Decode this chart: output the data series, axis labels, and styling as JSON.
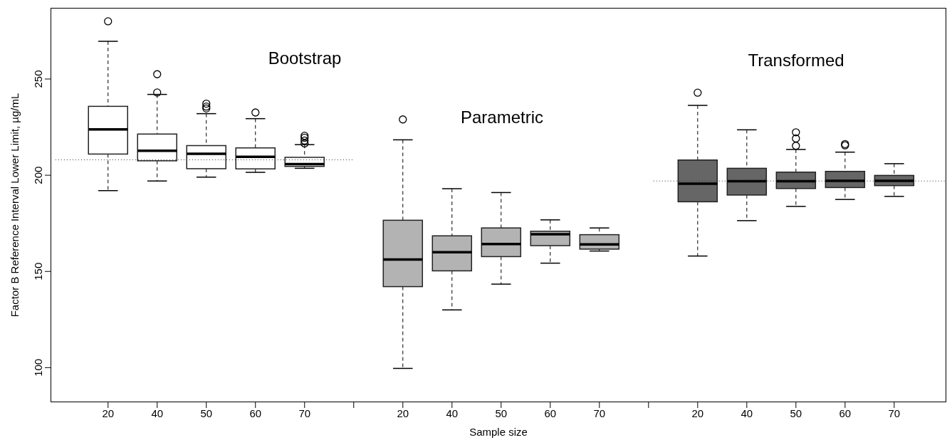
{
  "chart_data": {
    "type": "box",
    "xlabel": "Sample size",
    "ylabel": "Factor B Reference Interval Lower Limit, µg/mL",
    "annotations": [
      "Bootstrap",
      "Parametric",
      "Transformed"
    ],
    "categories": [
      "20",
      "40",
      "50",
      "60",
      "70",
      null,
      "20",
      "40",
      "50",
      "60",
      "70",
      null,
      "20",
      "40",
      "50",
      "60",
      "70"
    ],
    "boxes": [
      {
        "low": 192,
        "q1": 211,
        "median": 223.8,
        "q3": 235.8,
        "high": 269.6,
        "outliers": [
          280
        ]
      },
      {
        "low": 197,
        "q1": 207.5,
        "median": 212.7,
        "q3": 221.4,
        "high": 242,
        "outliers": [
          243,
          252.5
        ]
      },
      {
        "low": 199,
        "q1": 203.4,
        "median": 211.1,
        "q3": 215.4,
        "high": 232,
        "outliers": [
          234.7,
          235.7,
          237.2
        ]
      },
      {
        "low": 201.5,
        "q1": 203.3,
        "median": 209.6,
        "q3": 214.2,
        "high": 229.4,
        "outliers": [
          232.6
        ]
      },
      {
        "low": 203.6,
        "q1": 204.6,
        "median": 205.8,
        "q3": 209.3,
        "high": 215.9,
        "outliers": [
          216.5,
          218,
          219.5,
          220.5
        ]
      },
      null,
      {
        "low": 99.6,
        "q1": 142.1,
        "median": 156.2,
        "q3": 176.6,
        "high": 218.4,
        "outliers": [
          229
        ]
      },
      {
        "low": 130,
        "q1": 150.3,
        "median": 160,
        "q3": 168.5,
        "high": 193
      },
      {
        "low": 143.4,
        "q1": 157.7,
        "median": 164.2,
        "q3": 172.6,
        "high": 191
      },
      {
        "low": 154.3,
        "q1": 163.4,
        "median": 169.3,
        "q3": 170.9,
        "high": 176.8
      },
      {
        "low": 160.6,
        "q1": 161.6,
        "median": 164.1,
        "q3": 169.1,
        "high": 172.6
      },
      null,
      {
        "low": 158,
        "q1": 186.2,
        "median": 195.6,
        "q3": 207.9,
        "high": 236.3,
        "outliers": [
          242.9
        ]
      },
      {
        "low": 176.4,
        "q1": 189.7,
        "median": 196.9,
        "q3": 203.6,
        "high": 223.6
      },
      {
        "low": 183.8,
        "q1": 193.1,
        "median": 196.9,
        "q3": 201.6,
        "high": 213.4,
        "outliers": [
          215.3,
          219.1,
          222.3
        ]
      },
      {
        "low": 187.4,
        "q1": 193.6,
        "median": 197.1,
        "q3": 202,
        "high": 212,
        "outliers": [
          215.5,
          216.2
        ]
      },
      {
        "low": 189,
        "q1": 194.6,
        "median": 197.1,
        "q3": 199.9,
        "high": 206
      }
    ],
    "colors": [
      "#ffffff",
      "#ffffff",
      "#ffffff",
      "#ffffff",
      "#ffffff",
      null,
      "#b3b3b3",
      "#b3b3b3",
      "#b3b3b3",
      "#b3b3b3",
      "#b3b3b3",
      null,
      "#666666",
      "#666666",
      "#666666",
      "#666666",
      "#666666"
    ],
    "ylim": [
      82,
      287
    ],
    "yticks": [
      100,
      150,
      200,
      250
    ],
    "ref_lines": [
      {
        "axis": "y",
        "value": 208,
        "line_style": "dotted",
        "color": "#333333"
      },
      {
        "axis": "y",
        "value": 197,
        "line_style": "dotted",
        "color": "#333333"
      }
    ]
  }
}
